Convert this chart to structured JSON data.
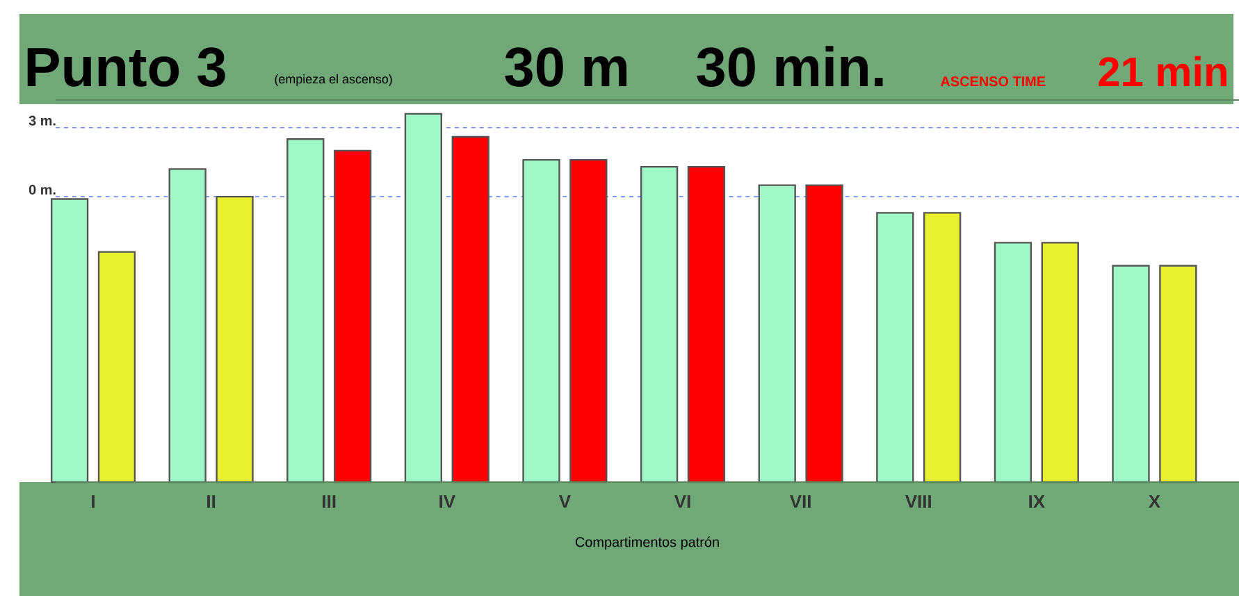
{
  "chart_data": {
    "type": "bar",
    "title": "Punto 3",
    "subtitle": "(empieza el ascenso)",
    "annotations": [
      "30 m",
      "30 min.",
      "ASCENSO TIME",
      "21 min"
    ],
    "xlabel": "Compartimentos patrón",
    "categories": [
      "I",
      "II",
      "III",
      "IV",
      "V",
      "VI",
      "VII",
      "VIII",
      "IX",
      "X"
    ],
    "series": [
      {
        "color": "#a0f8c8",
        "base": [
          -12.4,
          -12.4,
          -12.4,
          -12.4,
          -12.4,
          -12.4,
          -12.4,
          -12.4,
          -12.4,
          -12.4
        ],
        "values": [
          12.3,
          13.6,
          14.9,
          16.0,
          14.0,
          13.7,
          12.9,
          11.7,
          10.4,
          9.4
        ]
      },
      {
        "colors": [
          "#e8f030",
          "#e8f030",
          "#ff0000",
          "#ff0000",
          "#ff0000",
          "#ff0000",
          "#ff0000",
          "#e8f030",
          "#e8f030",
          "#e8f030"
        ],
        "base": [
          -12.4,
          -12.4,
          -12.4,
          -12.4,
          -12.4,
          -12.4,
          -12.4,
          -12.4,
          -12.4,
          -12.4
        ],
        "values": [
          10.0,
          12.4,
          14.4,
          15.0,
          14.0,
          13.7,
          12.9,
          11.7,
          10.4,
          9.4
        ]
      }
    ],
    "ylim": [
      -12.4,
      4.2
    ],
    "yticks": [
      {
        "value": 0,
        "label": "0 m."
      },
      {
        "value": 3,
        "label": "3 m."
      }
    ],
    "grid": "y"
  }
}
